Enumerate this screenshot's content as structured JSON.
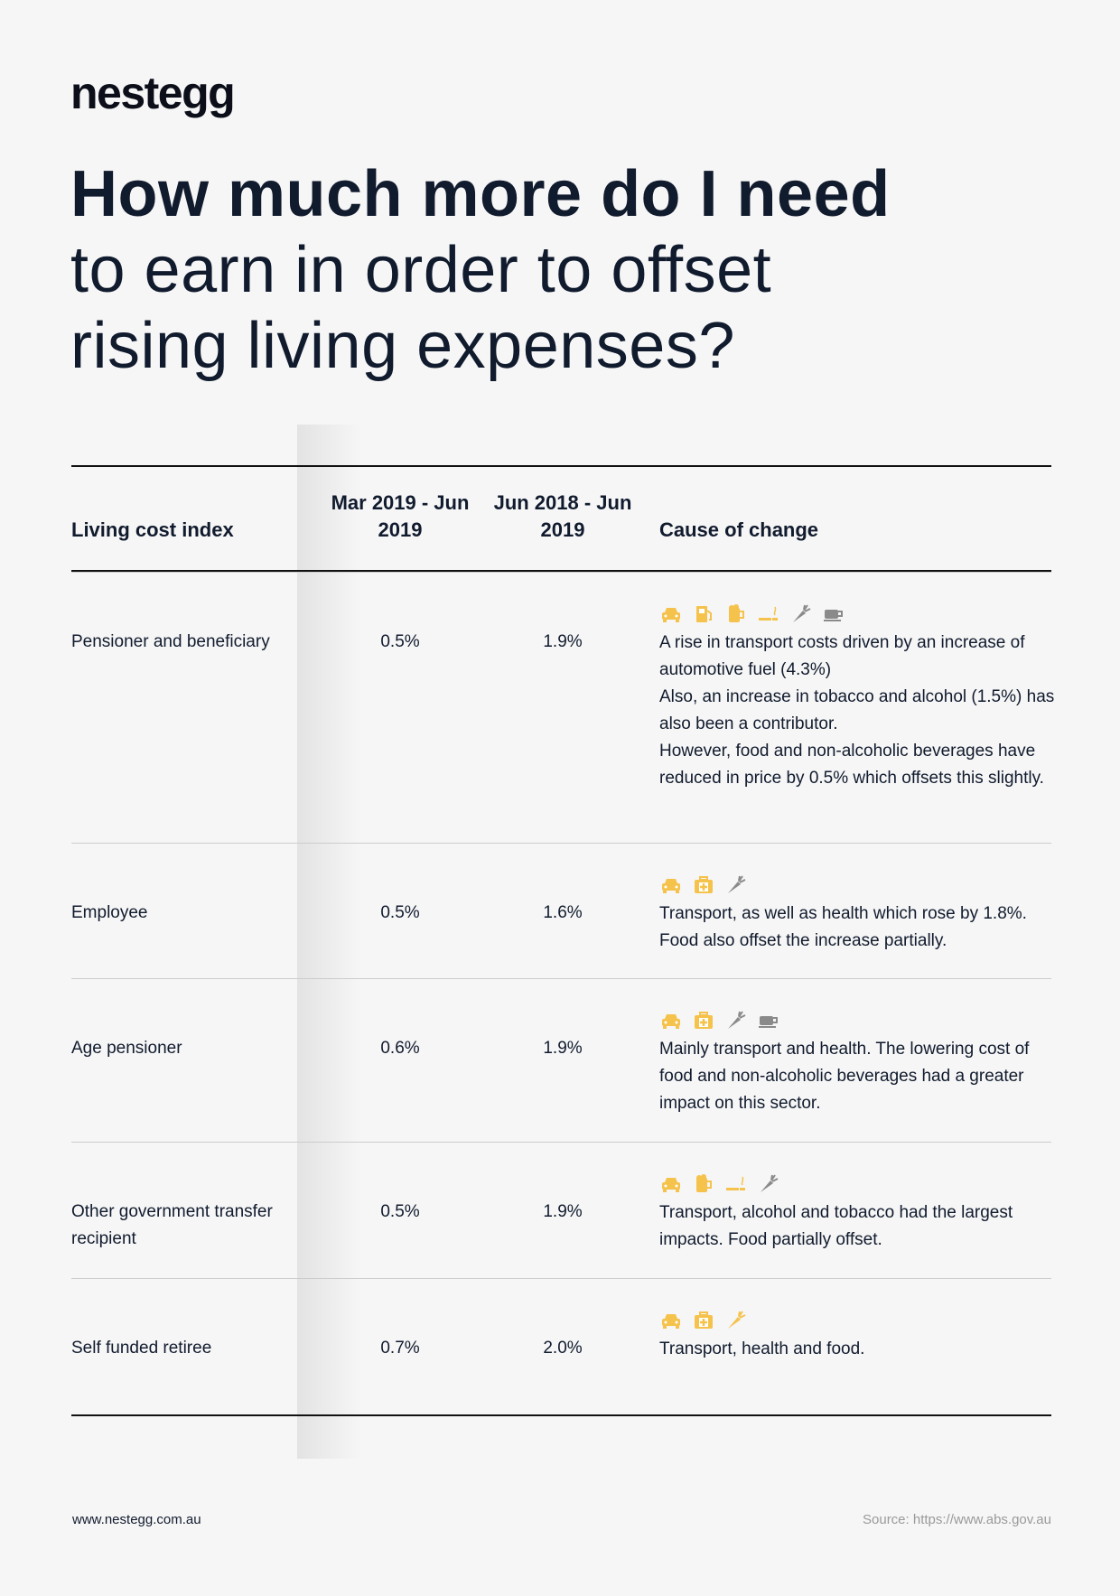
{
  "header": {
    "logo": "nestegg",
    "title_bold": "How much more do I need",
    "title_lines": [
      "to earn in order to offset",
      "rising living expenses?"
    ]
  },
  "table": {
    "columns": [
      "Living cost index",
      "Mar 2019 - Jun 2019",
      "Jun 2018 - Jun 2019",
      "Cause of change"
    ],
    "rows": [
      {
        "index": "Pensioner and beneficiary",
        "quarter": "0.5%",
        "year": "1.9%",
        "cause": [
          "A rise in transport costs driven by an increase of automotive fuel (4.3%)",
          "Also, an increase in tobacco and alcohol (1.5%) has also been a contributor.",
          "However, food and non-alcoholic beverages have reduced in price by 0.5% which offsets this slightly."
        ]
      },
      {
        "index": "Employee",
        "quarter": "0.5%",
        "year": "1.6%",
        "cause": [
          "Transport, as well as health which rose by 1.8%. Food also offset the increase partially."
        ]
      },
      {
        "index": "Age pensioner",
        "quarter": "0.6%",
        "year": "1.9%",
        "cause": [
          "Mainly transport and health. The lowering cost of food and non-alcoholic beverages had a greater impact on this sector."
        ]
      },
      {
        "index": "Other government transfer recipient",
        "quarter": "0.5%",
        "year": "1.9%",
        "cause": [
          "Transport, alcohol and tobacco had the largest impacts. Food partially offset."
        ]
      },
      {
        "index": "Self funded retiree",
        "quarter": "0.7%",
        "year": "2.0%",
        "cause": [
          "Transport, health and food."
        ]
      }
    ]
  },
  "footer": {
    "website": "www.nestegg.com.au",
    "source": "Source: https://www.abs.gov.au"
  }
}
